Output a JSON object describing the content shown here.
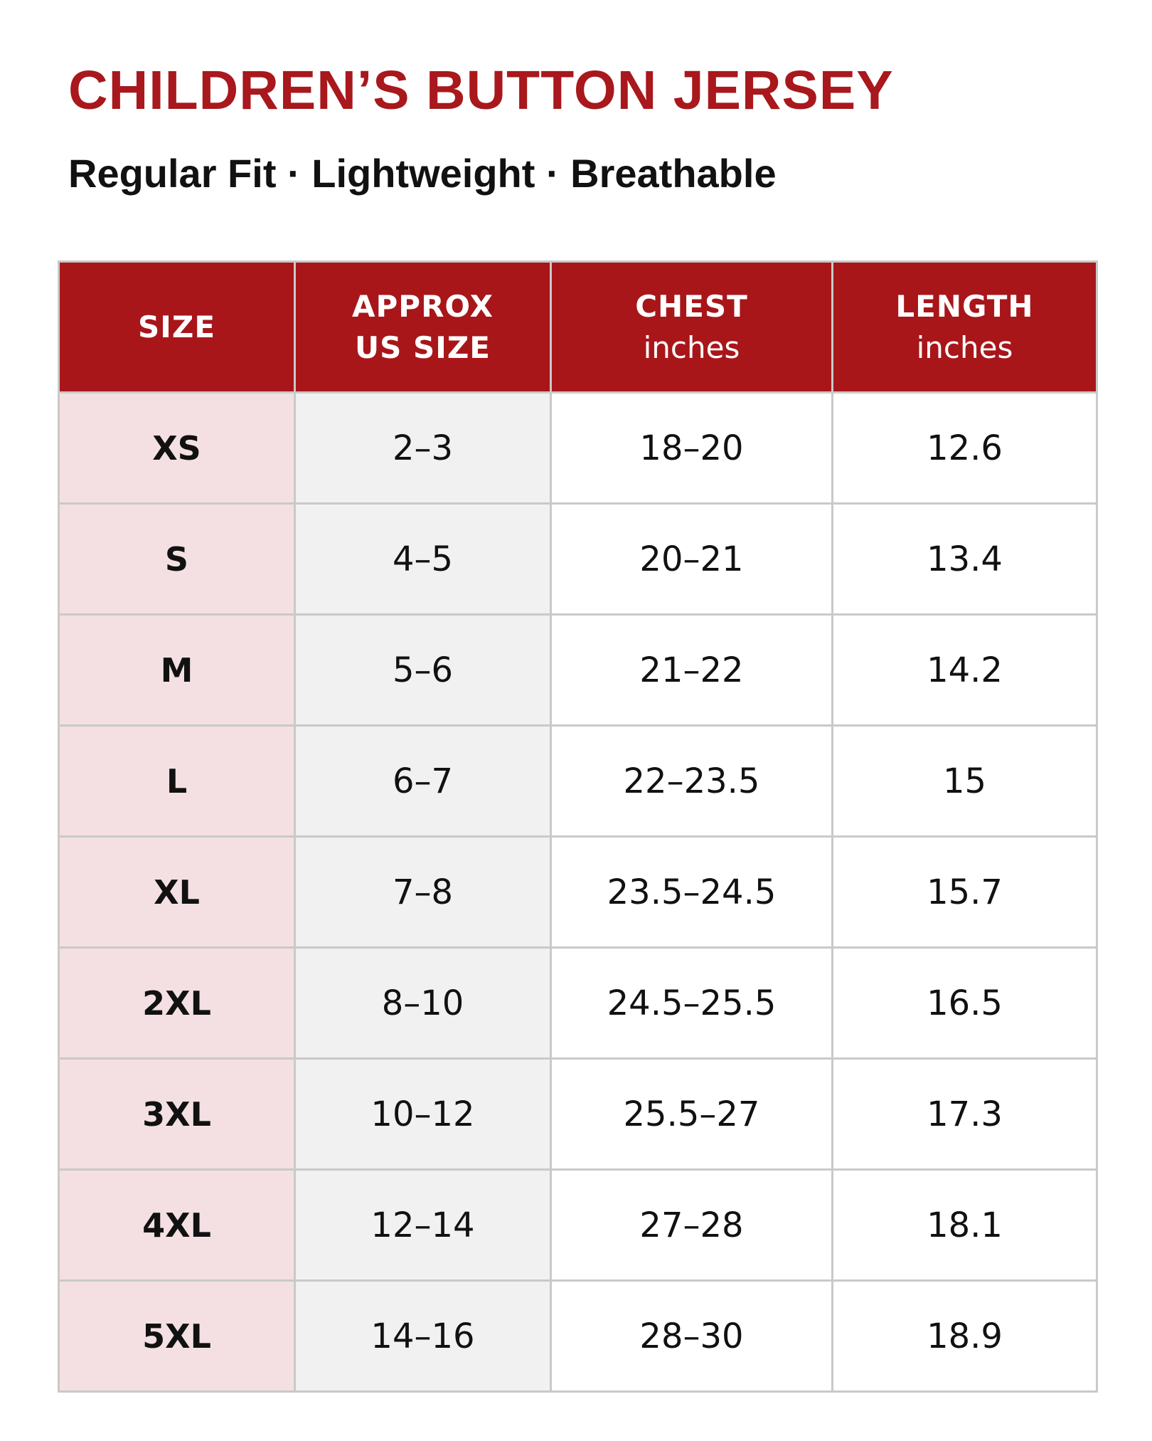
{
  "title": "CHILDREN’S BUTTON JERSEY",
  "subtitle": "Regular Fit · Lightweight · Breathable",
  "colors": {
    "accent": "#a8161a",
    "size_column_bg": "#f4e0e2",
    "us_column_bg": "#f1f1f1",
    "border": "#c9c9c9"
  },
  "table": {
    "headers": [
      {
        "main": "SIZE",
        "unit": ""
      },
      {
        "main": "APPROX",
        "unit": "US SIZE"
      },
      {
        "main": "CHEST",
        "unit": "inches"
      },
      {
        "main": "LENGTH",
        "unit": "inches"
      }
    ],
    "rows": [
      [
        "XS",
        "2–3",
        "18–20",
        "12.6"
      ],
      [
        "S",
        "4–5",
        "20–21",
        "13.4"
      ],
      [
        "M",
        "5–6",
        "21–22",
        "14.2"
      ],
      [
        "L",
        "6–7",
        "22–23.5",
        "15"
      ],
      [
        "XL",
        "7–8",
        "23.5–24.5",
        "15.7"
      ],
      [
        "2XL",
        "8–10",
        "24.5–25.5",
        "16.5"
      ],
      [
        "3XL",
        "10–12",
        "25.5–27",
        "17.3"
      ],
      [
        "4XL",
        "12–14",
        "27–28",
        "18.1"
      ],
      [
        "5XL",
        "14–16",
        "28–30",
        "18.9"
      ]
    ]
  }
}
